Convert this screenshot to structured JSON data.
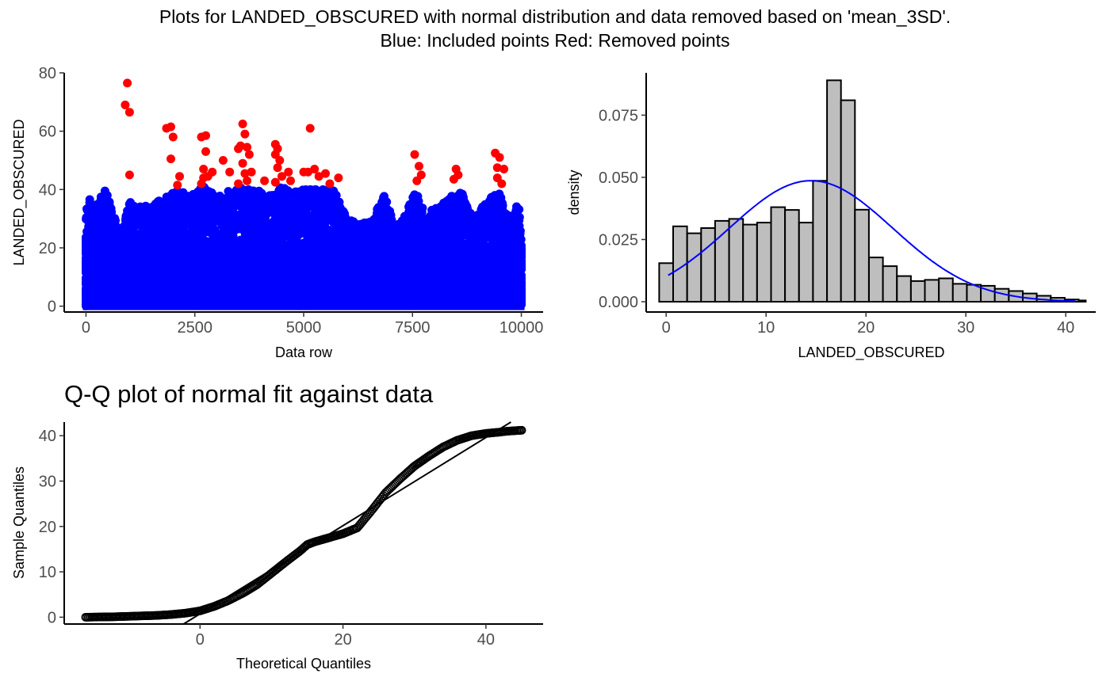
{
  "figure": {
    "title": "Plots for LANDED_OBSCURED with normal distribution and data removed based on 'mean_3SD'.",
    "subtitle": "Blue: Included points   Red: Removed points",
    "colors": {
      "included": "#0000ff",
      "removed": "#ff0000",
      "hist_fill": "#bebebe",
      "curve": "#0000ff"
    }
  },
  "chart_data": [
    {
      "type": "scatter",
      "xlabel": "Data row",
      "ylabel": "LANDED_OBSCURED",
      "xlim": [
        -500,
        10500
      ],
      "ylim": [
        -2,
        80
      ],
      "xticks": [
        0,
        2500,
        5000,
        7500,
        10000
      ],
      "xtick_labels": [
        "0",
        "2500",
        "5000",
        "7500",
        "10000"
      ],
      "yticks": [
        0,
        20,
        40,
        60,
        80
      ],
      "ytick_labels": [
        "0",
        "20",
        "40",
        "60",
        "80"
      ],
      "n_rows": 10000,
      "included_range": [
        0,
        41
      ],
      "series": [
        {
          "name": "Included points",
          "color": "#0000ff"
        },
        {
          "name": "Removed points",
          "color": "#ff0000",
          "points": [
            [
              950,
              76.5
            ],
            [
              900,
              69
            ],
            [
              1000,
              66.5
            ],
            [
              1000,
              45
            ],
            [
              1850,
              61
            ],
            [
              1950,
              61.5
            ],
            [
              2000,
              58
            ],
            [
              1950,
              50.5
            ],
            [
              2150,
              44.5
            ],
            [
              2100,
              41.5
            ],
            [
              2650,
              58
            ],
            [
              2750,
              58.5
            ],
            [
              2750,
              53
            ],
            [
              2700,
              47
            ],
            [
              2700,
              44
            ],
            [
              2800,
              44.5
            ],
            [
              2900,
              46
            ],
            [
              2650,
              42
            ],
            [
              3150,
              50
            ],
            [
              3300,
              46
            ],
            [
              3600,
              62.5
            ],
            [
              3650,
              59
            ],
            [
              3550,
              55
            ],
            [
              3500,
              54
            ],
            [
              3700,
              54.5
            ],
            [
              3750,
              52
            ],
            [
              3600,
              49
            ],
            [
              3650,
              45.5
            ],
            [
              3700,
              43
            ],
            [
              3800,
              46
            ],
            [
              3500,
              42
            ],
            [
              4100,
              43
            ],
            [
              4350,
              55.5
            ],
            [
              4400,
              54
            ],
            [
              4350,
              52
            ],
            [
              4450,
              50
            ],
            [
              4400,
              47.5
            ],
            [
              4500,
              44.5
            ],
            [
              4650,
              46
            ],
            [
              4700,
              43
            ],
            [
              4350,
              42.5
            ],
            [
              5000,
              46
            ],
            [
              5150,
              61
            ],
            [
              5100,
              46
            ],
            [
              5250,
              47
            ],
            [
              5350,
              44.5
            ],
            [
              5500,
              45.5
            ],
            [
              5600,
              42
            ],
            [
              5800,
              44
            ],
            [
              7550,
              52
            ],
            [
              7650,
              48
            ],
            [
              7700,
              45
            ],
            [
              7600,
              43
            ],
            [
              8500,
              47
            ],
            [
              8450,
              43.5
            ],
            [
              8550,
              45
            ],
            [
              9400,
              52.5
            ],
            [
              9500,
              51
            ],
            [
              9450,
              47.5
            ],
            [
              9600,
              47
            ],
            [
              9450,
              44
            ],
            [
              9550,
              42
            ]
          ]
        }
      ]
    },
    {
      "type": "bar",
      "subtype": "histogram",
      "xlabel": "LANDED_OBSCURED",
      "ylabel": "density",
      "xlim": [
        -2,
        43
      ],
      "ylim": [
        0,
        0.092
      ],
      "xticks": [
        0,
        10,
        20,
        30,
        40
      ],
      "xtick_labels": [
        "0",
        "10",
        "20",
        "30",
        "40"
      ],
      "yticks": [
        0,
        0.025,
        0.05,
        0.075
      ],
      "ytick_labels": [
        "0.000",
        "0.025",
        "0.050",
        "0.075"
      ],
      "bins": [
        {
          "x0": -0.7,
          "x1": 0.7,
          "density": 0.0155
        },
        {
          "x0": 0.7,
          "x1": 2.1,
          "density": 0.0303
        },
        {
          "x0": 2.1,
          "x1": 3.5,
          "density": 0.0275
        },
        {
          "x0": 3.5,
          "x1": 4.9,
          "density": 0.0296
        },
        {
          "x0": 4.9,
          "x1": 6.3,
          "density": 0.0325
        },
        {
          "x0": 6.3,
          "x1": 7.7,
          "density": 0.0333
        },
        {
          "x0": 7.7,
          "x1": 9.1,
          "density": 0.031
        },
        {
          "x0": 9.1,
          "x1": 10.5,
          "density": 0.0318
        },
        {
          "x0": 10.5,
          "x1": 11.9,
          "density": 0.038
        },
        {
          "x0": 11.9,
          "x1": 13.3,
          "density": 0.0369
        },
        {
          "x0": 13.3,
          "x1": 14.7,
          "density": 0.0318
        },
        {
          "x0": 14.7,
          "x1": 16.1,
          "density": 0.0486
        },
        {
          "x0": 16.1,
          "x1": 17.5,
          "density": 0.089
        },
        {
          "x0": 17.5,
          "x1": 18.9,
          "density": 0.081
        },
        {
          "x0": 18.9,
          "x1": 20.3,
          "density": 0.037
        },
        {
          "x0": 20.3,
          "x1": 21.7,
          "density": 0.0178
        },
        {
          "x0": 21.7,
          "x1": 23.1,
          "density": 0.0143
        },
        {
          "x0": 23.1,
          "x1": 24.5,
          "density": 0.0103
        },
        {
          "x0": 24.5,
          "x1": 25.9,
          "density": 0.0083
        },
        {
          "x0": 25.9,
          "x1": 27.3,
          "density": 0.0088
        },
        {
          "x0": 27.3,
          "x1": 28.7,
          "density": 0.0094
        },
        {
          "x0": 28.7,
          "x1": 30.1,
          "density": 0.0072
        },
        {
          "x0": 30.1,
          "x1": 31.5,
          "density": 0.0068
        },
        {
          "x0": 31.5,
          "x1": 32.9,
          "density": 0.0064
        },
        {
          "x0": 32.9,
          "x1": 34.3,
          "density": 0.0052
        },
        {
          "x0": 34.3,
          "x1": 35.7,
          "density": 0.0043
        },
        {
          "x0": 35.7,
          "x1": 37.1,
          "density": 0.0033
        },
        {
          "x0": 37.1,
          "x1": 38.5,
          "density": 0.0024
        },
        {
          "x0": 38.5,
          "x1": 39.9,
          "density": 0.0016
        },
        {
          "x0": 39.9,
          "x1": 41.3,
          "density": 0.0009
        },
        {
          "x0": 41.3,
          "x1": 42.0,
          "density": 0.0005
        }
      ],
      "normal_fit": {
        "mean": 14.5,
        "sd": 8.2,
        "x_range": [
          0.2,
          41
        ]
      }
    },
    {
      "type": "scatter",
      "subtype": "qq",
      "title": "Q-Q plot of normal fit against data",
      "xlabel": "Theoretical Quantiles",
      "ylabel": "Sample Quantiles",
      "xlim": [
        -19,
        48
      ],
      "ylim": [
        -1.5,
        43
      ],
      "xticks": [
        0,
        20,
        40
      ],
      "xtick_labels": [
        "0",
        "20",
        "40"
      ],
      "yticks": [
        0,
        10,
        20,
        30,
        40
      ],
      "ytick_labels": [
        "0",
        "10",
        "20",
        "30",
        "40"
      ],
      "quantile_curve": [
        [
          -16,
          0
        ],
        [
          -14,
          0.05
        ],
        [
          -12,
          0.1
        ],
        [
          -10,
          0.2
        ],
        [
          -8,
          0.3
        ],
        [
          -6,
          0.4
        ],
        [
          -4,
          0.6
        ],
        [
          -2,
          0.9
        ],
        [
          0,
          1.4
        ],
        [
          2,
          2.4
        ],
        [
          4,
          3.7
        ],
        [
          6,
          5.3
        ],
        [
          8,
          7.2
        ],
        [
          10,
          9.7
        ],
        [
          12,
          12.2
        ],
        [
          14,
          14.6
        ],
        [
          15,
          16
        ],
        [
          16,
          16.6
        ],
        [
          18,
          17.5
        ],
        [
          20,
          18.4
        ],
        [
          22,
          19.7
        ],
        [
          24,
          23.5
        ],
        [
          26,
          27.5
        ],
        [
          28,
          30.5
        ],
        [
          30,
          33.3
        ],
        [
          32,
          35.5
        ],
        [
          34,
          37.5
        ],
        [
          36,
          39
        ],
        [
          38,
          40
        ],
        [
          40,
          40.5
        ],
        [
          42,
          40.8
        ],
        [
          43,
          41
        ],
        [
          44,
          41.1
        ],
        [
          45,
          41.2
        ]
      ],
      "reference_line": {
        "points": [
          [
            -2.3,
            -1.5
          ],
          [
            43.5,
            43
          ]
        ]
      }
    }
  ]
}
